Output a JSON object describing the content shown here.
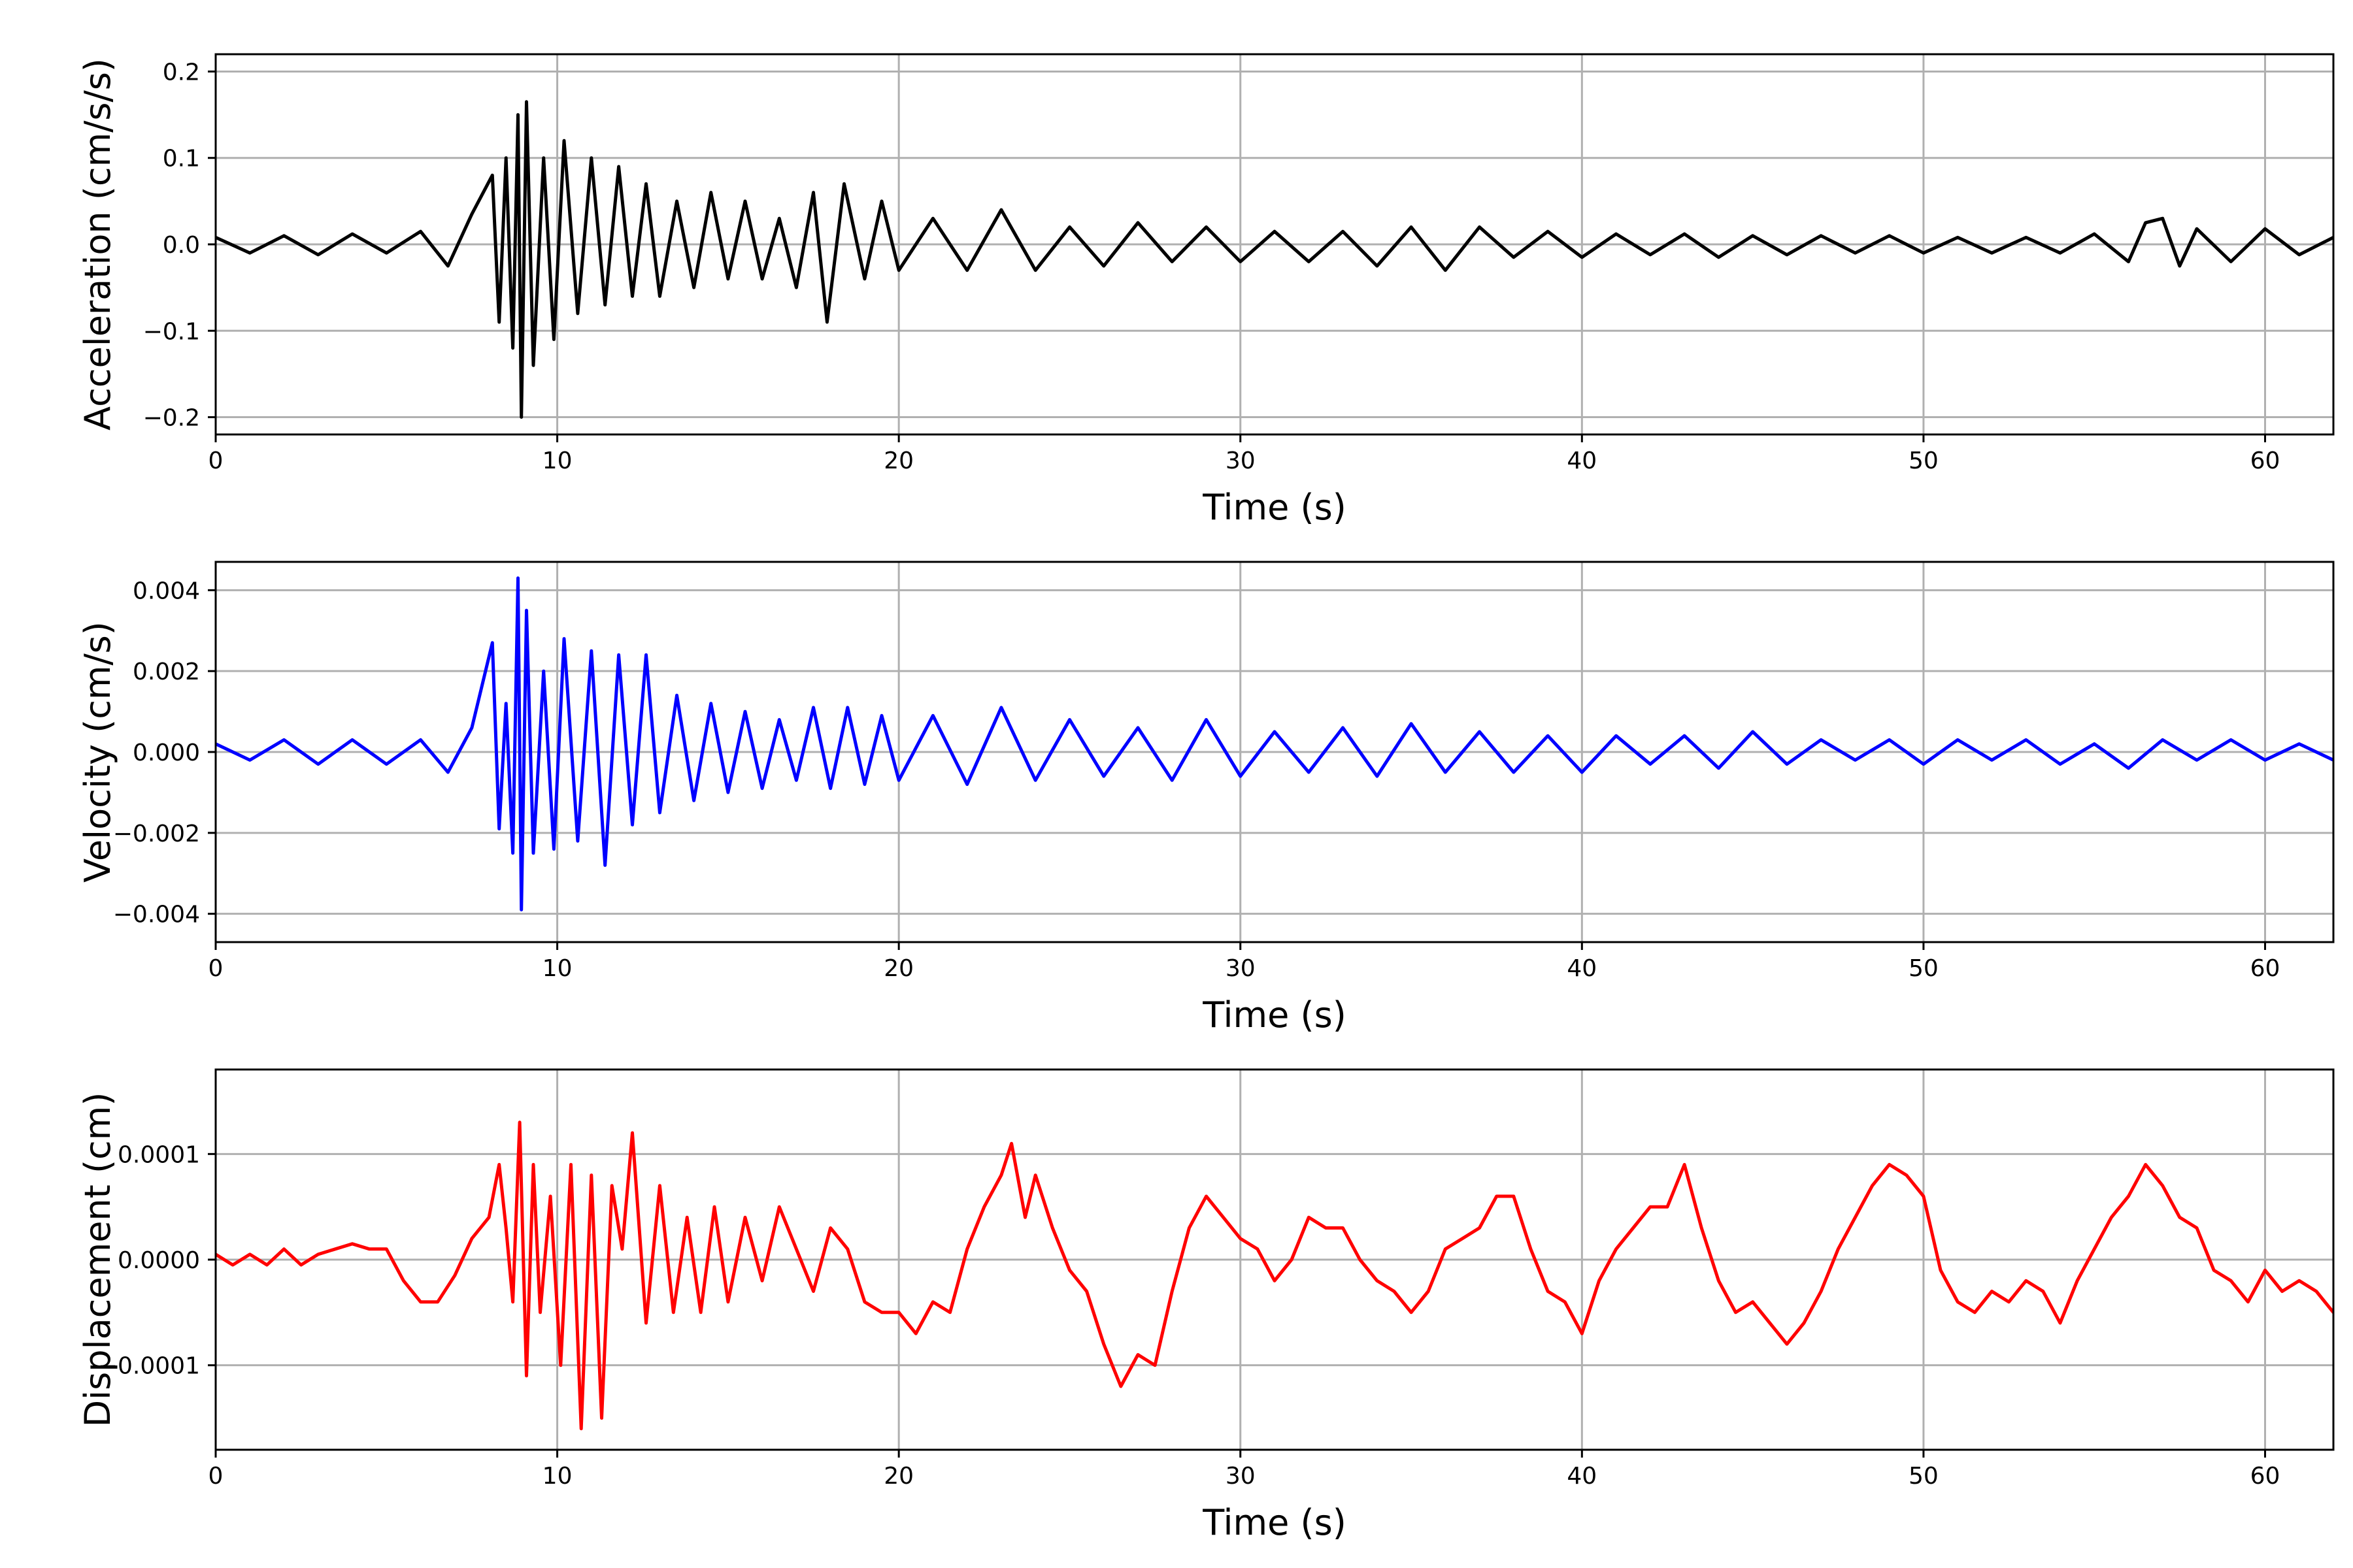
{
  "chart_data": [
    {
      "type": "line",
      "xlabel": "Time (s)",
      "ylabel": "Acceleration (cm/s/s)",
      "xlim": [
        0,
        62
      ],
      "ylim": [
        -0.22,
        0.22
      ],
      "xticks": [
        0,
        10,
        20,
        30,
        40,
        50,
        60
      ],
      "xtick_labels": [
        "0",
        "10",
        "20",
        "30",
        "40",
        "50",
        "60"
      ],
      "yticks": [
        -0.2,
        -0.1,
        0.0,
        0.1,
        0.2
      ],
      "ytick_labels": [
        "−0.2",
        "−0.1",
        "0.0",
        "0.1",
        "0.2"
      ],
      "grid": true,
      "color": "#000000",
      "series": [
        {
          "x": [
            0,
            1,
            2,
            3,
            4,
            5,
            6,
            6.8,
            7.5,
            8.1,
            8.3,
            8.5,
            8.7,
            8.85,
            8.95,
            9.1,
            9.3,
            9.6,
            9.9,
            10.2,
            10.6,
            11,
            11.4,
            11.8,
            12.2,
            12.6,
            13,
            13.5,
            14,
            14.5,
            15,
            15.5,
            16,
            16.5,
            17,
            17.5,
            17.9,
            18.4,
            19,
            19.5,
            20,
            21,
            22,
            23,
            24,
            25,
            26,
            27,
            28,
            29,
            30,
            31,
            32,
            33,
            34,
            35,
            36,
            37,
            38,
            39,
            40,
            41,
            42,
            43,
            44,
            45,
            46,
            47,
            48,
            49,
            50,
            51,
            52,
            53,
            54,
            55,
            56,
            56.5,
            57,
            57.5,
            58,
            59,
            60,
            61,
            62
          ],
          "y": [
            0.008,
            -0.01,
            0.01,
            -0.012,
            0.012,
            -0.01,
            0.015,
            -0.025,
            0.035,
            0.08,
            -0.09,
            0.1,
            -0.12,
            0.15,
            -0.2,
            0.165,
            -0.14,
            0.1,
            -0.11,
            0.12,
            -0.08,
            0.1,
            -0.07,
            0.09,
            -0.06,
            0.07,
            -0.06,
            0.05,
            -0.05,
            0.06,
            -0.04,
            0.05,
            -0.04,
            0.03,
            -0.05,
            0.06,
            -0.09,
            0.07,
            -0.04,
            0.05,
            -0.03,
            0.03,
            -0.03,
            0.04,
            -0.03,
            0.02,
            -0.025,
            0.025,
            -0.02,
            0.02,
            -0.02,
            0.015,
            -0.02,
            0.015,
            -0.025,
            0.02,
            -0.03,
            0.02,
            -0.015,
            0.015,
            -0.015,
            0.012,
            -0.012,
            0.012,
            -0.015,
            0.01,
            -0.012,
            0.01,
            -0.01,
            0.01,
            -0.01,
            0.008,
            -0.01,
            0.008,
            -0.01,
            0.012,
            -0.02,
            0.025,
            0.03,
            -0.025,
            0.018,
            -0.02,
            0.018,
            -0.012,
            0.008
          ]
        }
      ]
    },
    {
      "type": "line",
      "xlabel": "Time (s)",
      "ylabel": "Velocity (cm/s)",
      "xlim": [
        0,
        62
      ],
      "ylim": [
        -0.0047,
        0.0047
      ],
      "xticks": [
        0,
        10,
        20,
        30,
        40,
        50,
        60
      ],
      "xtick_labels": [
        "0",
        "10",
        "20",
        "30",
        "40",
        "50",
        "60"
      ],
      "yticks": [
        -0.004,
        -0.002,
        0.0,
        0.002,
        0.004
      ],
      "ytick_labels": [
        "−0.004",
        "−0.002",
        "0.000",
        "0.002",
        "0.004"
      ],
      "grid": true,
      "color": "#0000ff",
      "series": [
        {
          "x": [
            0,
            1,
            2,
            3,
            4,
            5,
            6,
            6.8,
            7.5,
            8.1,
            8.3,
            8.5,
            8.7,
            8.85,
            8.95,
            9.1,
            9.3,
            9.6,
            9.9,
            10.2,
            10.6,
            11,
            11.4,
            11.8,
            12.2,
            12.6,
            13,
            13.5,
            14,
            14.5,
            15,
            15.5,
            16,
            16.5,
            17,
            17.5,
            18,
            18.5,
            19,
            19.5,
            20,
            21,
            22,
            23,
            24,
            25,
            26,
            27,
            28,
            29,
            30,
            31,
            32,
            33,
            34,
            35,
            36,
            37,
            38,
            39,
            40,
            41,
            42,
            43,
            44,
            45,
            46,
            47,
            48,
            49,
            50,
            51,
            52,
            53,
            54,
            55,
            56,
            57,
            58,
            59,
            60,
            61,
            62
          ],
          "y": [
            0.0002,
            -0.0002,
            0.0003,
            -0.0003,
            0.0003,
            -0.0003,
            0.0003,
            -0.0005,
            0.0006,
            0.0027,
            -0.0019,
            0.0012,
            -0.0025,
            0.0043,
            -0.0039,
            0.0035,
            -0.0025,
            0.002,
            -0.0024,
            0.0028,
            -0.0022,
            0.0025,
            -0.0028,
            0.0024,
            -0.0018,
            0.0024,
            -0.0015,
            0.0014,
            -0.0012,
            0.0012,
            -0.001,
            0.001,
            -0.0009,
            0.0008,
            -0.0007,
            0.0011,
            -0.0009,
            0.0011,
            -0.0008,
            0.0009,
            -0.0007,
            0.0009,
            -0.0008,
            0.0011,
            -0.0007,
            0.0008,
            -0.0006,
            0.0006,
            -0.0007,
            0.0008,
            -0.0006,
            0.0005,
            -0.0005,
            0.0006,
            -0.0006,
            0.0007,
            -0.0005,
            0.0005,
            -0.0005,
            0.0004,
            -0.0005,
            0.0004,
            -0.0003,
            0.0004,
            -0.0004,
            0.0005,
            -0.0003,
            0.0003,
            -0.0002,
            0.0003,
            -0.0003,
            0.0003,
            -0.0002,
            0.0003,
            -0.0003,
            0.0002,
            -0.0004,
            0.0003,
            -0.0002,
            0.0003,
            -0.0002,
            0.0002,
            -0.0002
          ]
        }
      ]
    },
    {
      "type": "line",
      "xlabel": "Time (s)",
      "ylabel": "Displacement (cm)",
      "xlim": [
        0,
        62
      ],
      "ylim": [
        -0.00018,
        0.00018
      ],
      "xticks": [
        0,
        10,
        20,
        30,
        40,
        50,
        60
      ],
      "xtick_labels": [
        "0",
        "10",
        "20",
        "30",
        "40",
        "50",
        "60"
      ],
      "yticks": [
        -0.0001,
        0.0,
        0.0001
      ],
      "ytick_labels": [
        "−0.0001",
        "0.0000",
        "0.0001"
      ],
      "grid": true,
      "color": "#ff0000",
      "series": [
        {
          "x": [
            0,
            0.5,
            1,
            1.5,
            2,
            2.5,
            3,
            3.5,
            4,
            4.5,
            5,
            5.5,
            6,
            6.5,
            7,
            7.5,
            8,
            8.3,
            8.5,
            8.7,
            8.9,
            9.1,
            9.3,
            9.5,
            9.8,
            10.1,
            10.4,
            10.7,
            11,
            11.3,
            11.6,
            11.9,
            12.2,
            12.6,
            13,
            13.4,
            13.8,
            14.2,
            14.6,
            15,
            15.5,
            16,
            16.5,
            17,
            17.5,
            18,
            18.5,
            19,
            19.5,
            20,
            20.5,
            21,
            21.5,
            22,
            22.5,
            23,
            23.3,
            23.7,
            24,
            24.5,
            25,
            25.5,
            26,
            26.5,
            27,
            27.5,
            28,
            28.5,
            29,
            29.5,
            30,
            30.5,
            31,
            31.5,
            32,
            32.5,
            33,
            33.5,
            34,
            34.5,
            35,
            35.5,
            36,
            36.5,
            37,
            37.5,
            38,
            38.5,
            39,
            39.5,
            40,
            40.5,
            41,
            41.5,
            42,
            42.5,
            43,
            43.5,
            44,
            44.5,
            45,
            45.5,
            46,
            46.5,
            47,
            47.5,
            48,
            48.5,
            49,
            49.5,
            50,
            50.5,
            51,
            51.5,
            52,
            52.5,
            53,
            53.5,
            54,
            54.5,
            55,
            55.5,
            56,
            56.5,
            57,
            57.5,
            58,
            58.5,
            59,
            59.5,
            60,
            60.5,
            61,
            61.5,
            62
          ],
          "y": [
            5e-06,
            -5e-06,
            5e-06,
            -5e-06,
            1e-05,
            -5e-06,
            5e-06,
            1e-05,
            1.5e-05,
            1e-05,
            1e-05,
            -2e-05,
            -4e-05,
            -4e-05,
            -1.5e-05,
            2e-05,
            4e-05,
            9e-05,
            3e-05,
            -4e-05,
            0.00013,
            -0.00011,
            9e-05,
            -5e-05,
            6e-05,
            -0.0001,
            9e-05,
            -0.00016,
            8e-05,
            -0.00015,
            7e-05,
            1e-05,
            0.00012,
            -6e-05,
            7e-05,
            -5e-05,
            4e-05,
            -5e-05,
            5e-05,
            -4e-05,
            4e-05,
            -2e-05,
            5e-05,
            1e-05,
            -3e-05,
            3e-05,
            1e-05,
            -4e-05,
            -5e-05,
            -5e-05,
            -7e-05,
            -4e-05,
            -5e-05,
            1e-05,
            5e-05,
            8e-05,
            0.00011,
            4e-05,
            8e-05,
            3e-05,
            -1e-05,
            -3e-05,
            -8e-05,
            -0.00012,
            -9e-05,
            -0.0001,
            -3e-05,
            3e-05,
            6e-05,
            4e-05,
            2e-05,
            1e-05,
            -2e-05,
            0.0,
            4e-05,
            3e-05,
            3e-05,
            0.0,
            -2e-05,
            -3e-05,
            -5e-05,
            -3e-05,
            1e-05,
            2e-05,
            3e-05,
            6e-05,
            6e-05,
            1e-05,
            -3e-05,
            -4e-05,
            -7e-05,
            -2e-05,
            1e-05,
            3e-05,
            5e-05,
            5e-05,
            9e-05,
            3e-05,
            -2e-05,
            -5e-05,
            -4e-05,
            -6e-05,
            -8e-05,
            -6e-05,
            -3e-05,
            1e-05,
            4e-05,
            7e-05,
            9e-05,
            8e-05,
            6e-05,
            -1e-05,
            -4e-05,
            -5e-05,
            -3e-05,
            -4e-05,
            -2e-05,
            -3e-05,
            -6e-05,
            -2e-05,
            1e-05,
            4e-05,
            6e-05,
            9e-05,
            7e-05,
            4e-05,
            3e-05,
            -1e-05,
            -2e-05,
            -4e-05,
            -1e-05,
            -3e-05,
            -2e-05,
            -3e-05,
            -5e-05
          ]
        }
      ]
    }
  ]
}
